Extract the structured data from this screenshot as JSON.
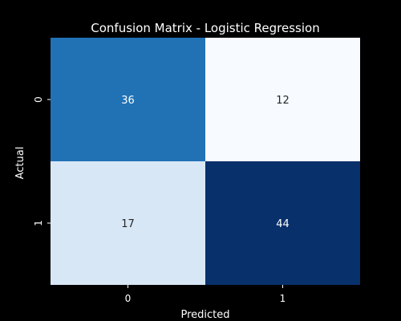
{
  "chart_data": {
    "type": "heatmap",
    "title": "Confusion Matrix - Logistic Regression",
    "xlabel": "Predicted",
    "ylabel": "Actual",
    "x_categories": [
      "0",
      "1"
    ],
    "y_categories": [
      "0",
      "1"
    ],
    "values": [
      [
        36,
        12
      ],
      [
        17,
        44
      ]
    ],
    "colormap": "Blues",
    "color_range": [
      12,
      44
    ],
    "colorbar": false,
    "grid": false
  },
  "colors": {
    "background": "#000000",
    "text": "#ffffff",
    "cmap_low": "#f7fbff",
    "cmap_high": "#08306b"
  }
}
